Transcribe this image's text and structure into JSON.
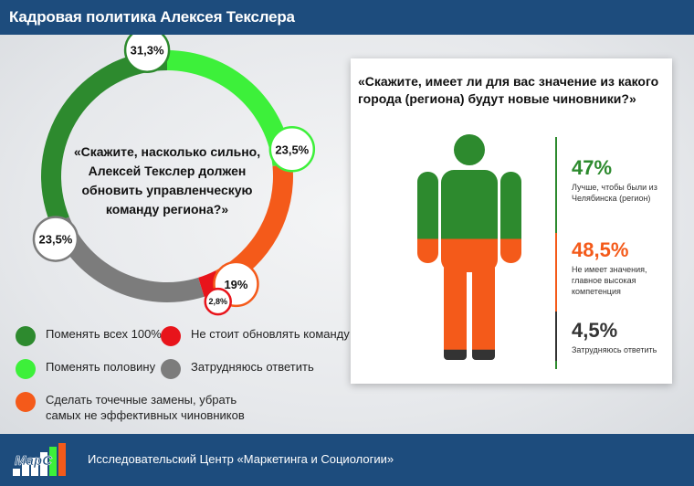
{
  "header": {
    "title": "Кадровая политика Алексея Текслера"
  },
  "footer": {
    "caption": "Исследовательский Центр «Маркетинга и Социологии»",
    "logo_text": "МарС"
  },
  "colors": {
    "dark_green": "#2d8a2e",
    "light_green": "#3df03a",
    "orange": "#f45a1a",
    "red": "#e8141b",
    "gray": "#7c7c7c",
    "navy": "#1d4c7d",
    "figure_dark": "#333333"
  },
  "chart_data": [
    {
      "type": "pie",
      "title": "«Скажите, насколько сильно, Алексей Текслер должен обновить управленческую команду региона?»",
      "title_lines": [
        "«Скажите, насколько сильно,",
        "Алексей Текслер должен",
        "обновить управленческую",
        "команду региона?»"
      ],
      "series": [
        {
          "name": "Поменять всех 100%",
          "value": 31.3,
          "label": "31,3%",
          "color": "#2d8a2e"
        },
        {
          "name": "Поменять половину",
          "value": 23.5,
          "label": "23,5%",
          "color": "#3df03a"
        },
        {
          "name": "Сделать точечные замены, убрать самых не эффективных чиновников",
          "value": 19,
          "label": "19%",
          "color": "#f45a1a"
        },
        {
          "name": "Не стоит обновлять команду",
          "value": 2.8,
          "label": "2,8%",
          "color": "#e8141b"
        },
        {
          "name": "Затрудняюсь ответить",
          "value": 23.5,
          "label": "23,5%",
          "color": "#7c7c7c"
        }
      ]
    },
    {
      "type": "bar",
      "title": "«Скажите, имеет ли для вас значение из какого города (региона) будут новые чиновники?»",
      "series": [
        {
          "value": 47,
          "label": "47%",
          "desc": [
            "Лучше, чтобы были из",
            "Челябинска (регион)"
          ],
          "color": "#2d8a2e"
        },
        {
          "value": 48.5,
          "label": "48,5%",
          "desc": [
            "Не имеет значения,",
            "главное высокая компетенция"
          ],
          "color": "#f45a1a"
        },
        {
          "value": 4.5,
          "label": "4,5%",
          "desc": [
            "Затрудняюсь ответить"
          ],
          "color": "#333333"
        }
      ]
    }
  ],
  "legend": [
    {
      "label": "Поменять всех 100%",
      "color": "#2d8a2e"
    },
    {
      "label": "Не стоит обновлять команду",
      "color": "#e8141b"
    },
    {
      "label": "Поменять половину",
      "color": "#3df03a"
    },
    {
      "label": "Затрудняюсь ответить",
      "color": "#7c7c7c"
    },
    {
      "label": "Сделать точечные замены, убрать самых не эффективных чиновников",
      "color": "#f45a1a"
    }
  ]
}
